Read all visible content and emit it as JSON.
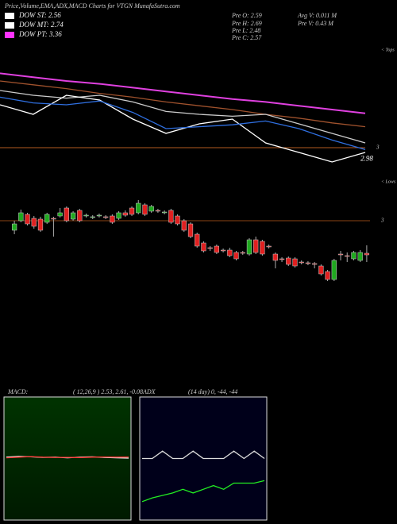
{
  "header": {
    "title": "Price,Volume,EMA,ADX,MACD Charts for VTGN MunafaSutra.com",
    "legend": [
      {
        "label": "DOW ST: 2.56",
        "color": "#ffffff"
      },
      {
        "label": "DOW MT: 2.74",
        "color": "#ffffff"
      },
      {
        "label": "DOW PT: 3.36",
        "color": "#ff33ff"
      }
    ],
    "stats": [
      "Pre  O: 2.59",
      "Pre  H: 2.69",
      "Pre  L: 2.48",
      "Pre  C: 2.57",
      "Avg  V: 0.011 M",
      "Pre  V: 0.43 M"
    ]
  },
  "chart_data": [
    {
      "type": "line",
      "side_label": "< Tops",
      "price_label": 2.98,
      "tick_color": "#b35a1f",
      "ylim": [
        2.7,
        4.05
      ],
      "yticks": [
        3
      ],
      "series": [
        {
          "color": "#e040e0",
          "values": [
            3.78,
            3.74,
            3.7,
            3.67,
            3.63,
            3.59,
            3.55,
            3.51,
            3.48,
            3.44,
            3.4,
            3.36
          ]
        },
        {
          "color": "#a0522d",
          "values": [
            3.7,
            3.66,
            3.62,
            3.57,
            3.53,
            3.48,
            3.44,
            3.4,
            3.35,
            3.31,
            3.26,
            3.22
          ]
        },
        {
          "color": "#cccccc",
          "values": [
            3.6,
            3.55,
            3.52,
            3.55,
            3.48,
            3.38,
            3.35,
            3.33,
            3.35,
            3.25,
            3.15,
            3.05
          ]
        },
        {
          "color": "#ffffff",
          "values": [
            3.45,
            3.35,
            3.55,
            3.5,
            3.3,
            3.15,
            3.25,
            3.3,
            3.05,
            2.95,
            2.85,
            2.95
          ]
        },
        {
          "color": "#2f6fe0",
          "values": [
            3.53,
            3.47,
            3.45,
            3.49,
            3.37,
            3.2,
            3.22,
            3.24,
            3.28,
            3.2,
            3.08,
            2.98
          ]
        }
      ]
    },
    {
      "type": "candlestick",
      "side_label": "< Lows",
      "up_color": "#1fa81f",
      "down_color": "#e02020",
      "tick_color": "#8b4513",
      "ylim": [
        2.08,
        3.48
      ],
      "yticks": [
        3
      ],
      "open": [
        2.88,
        3.0,
        3.08,
        3.03,
        3.02,
        2.98,
        3.03,
        3.06,
        3.16,
        3.02,
        3.13,
        3.06,
        3.04,
        3.06,
        3.05,
        3.06,
        3.03,
        3.1,
        3.16,
        3.1,
        3.2,
        3.12,
        3.13,
        3.1,
        3.13,
        3.06,
        3.0,
        2.96,
        2.83,
        2.72,
        2.66,
        2.68,
        2.63,
        2.63,
        2.6,
        2.6,
        2.58,
        2.76,
        2.74,
        2.68,
        2.58,
        2.52,
        2.53,
        2.52,
        2.48,
        2.47,
        2.46,
        2.43,
        2.36,
        2.26,
        2.58,
        2.56,
        2.52,
        2.5,
        2.59
      ],
      "high": [
        3.0,
        3.14,
        3.1,
        3.06,
        3.05,
        3.1,
        3.05,
        3.16,
        3.18,
        3.12,
        3.15,
        3.09,
        3.07,
        3.09,
        3.07,
        3.08,
        3.12,
        3.13,
        3.18,
        3.26,
        3.22,
        3.2,
        3.15,
        3.13,
        3.15,
        3.08,
        3.02,
        2.98,
        2.85,
        2.74,
        2.68,
        2.7,
        2.65,
        2.66,
        2.62,
        2.62,
        2.78,
        2.8,
        2.76,
        2.7,
        2.6,
        2.54,
        2.55,
        2.54,
        2.5,
        2.49,
        2.48,
        2.45,
        2.38,
        2.52,
        2.62,
        2.6,
        2.62,
        2.63,
        2.69
      ],
      "low": [
        2.83,
        2.98,
        2.94,
        2.9,
        2.86,
        2.96,
        2.8,
        3.04,
        2.98,
        3.0,
        2.98,
        3.04,
        3.02,
        3.04,
        3.02,
        2.96,
        3.01,
        3.05,
        3.06,
        3.08,
        3.06,
        3.1,
        3.1,
        3.08,
        2.96,
        2.94,
        2.86,
        2.78,
        2.66,
        2.6,
        2.62,
        2.58,
        2.6,
        2.54,
        2.5,
        2.57,
        2.56,
        2.58,
        2.56,
        2.65,
        2.4,
        2.48,
        2.43,
        2.41,
        2.45,
        2.44,
        2.4,
        2.31,
        2.24,
        2.24,
        2.5,
        2.48,
        2.5,
        2.48,
        2.48
      ],
      "close": [
        2.96,
        3.1,
        2.96,
        2.93,
        2.88,
        3.08,
        3.02,
        3.1,
        3.0,
        3.1,
        3.0,
        3.07,
        3.05,
        3.07,
        3.04,
        2.98,
        3.1,
        3.07,
        3.08,
        3.22,
        3.08,
        3.18,
        3.12,
        3.11,
        2.98,
        2.96,
        2.88,
        2.8,
        2.68,
        2.62,
        2.65,
        2.6,
        2.62,
        2.56,
        2.52,
        2.59,
        2.76,
        2.6,
        2.58,
        2.67,
        2.5,
        2.51,
        2.45,
        2.43,
        2.47,
        2.46,
        2.45,
        2.33,
        2.26,
        2.5,
        2.57,
        2.55,
        2.6,
        2.6,
        2.57
      ]
    },
    {
      "type": "line",
      "title": "MACD:",
      "subtitle": "( 12,26,9 ) 2.53, 2.61, -0.08",
      "ylim": [
        -2,
        7
      ],
      "series": [
        {
          "color": "#ffffff",
          "values": [
            2.6,
            2.65,
            2.62,
            2.58,
            2.6,
            2.55,
            2.6,
            2.62,
            2.58,
            2.55,
            2.53
          ]
        },
        {
          "color": "#ff3030",
          "values": [
            2.55,
            2.6,
            2.64,
            2.6,
            2.58,
            2.58,
            2.57,
            2.6,
            2.61,
            2.6,
            2.61
          ]
        }
      ]
    },
    {
      "type": "line",
      "title": "ADX",
      "subtitle": "(14 day) 0, -44, -44",
      "ylim": [
        0,
        100
      ],
      "series": [
        {
          "color": "#dddddd",
          "values": [
            50,
            50,
            56,
            50,
            50,
            56,
            50,
            50,
            50,
            56,
            50,
            56,
            50
          ]
        },
        {
          "color": "#22ee22",
          "values": [
            15,
            18,
            20,
            22,
            25,
            22,
            25,
            28,
            25,
            30,
            30,
            30,
            32
          ]
        }
      ]
    }
  ]
}
